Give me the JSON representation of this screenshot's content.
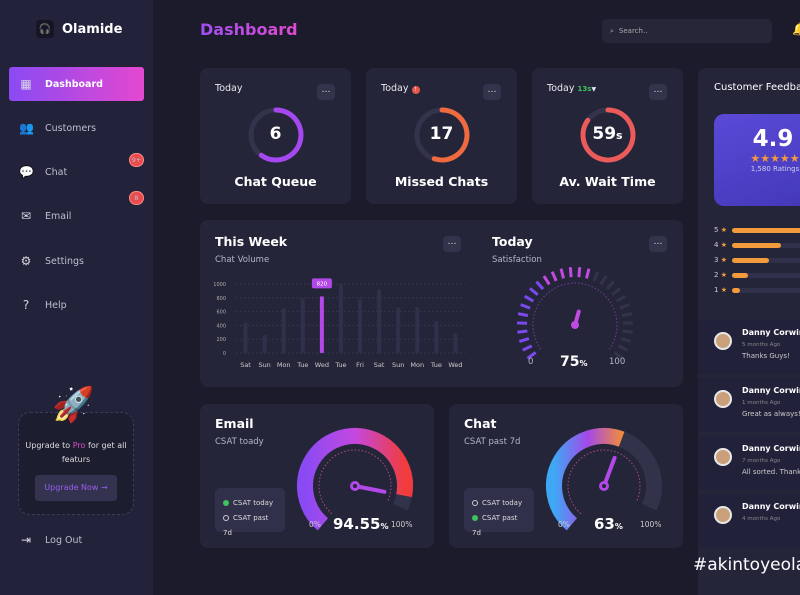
{
  "brand": {
    "name": "Olamide"
  },
  "sidebar": {
    "items": [
      {
        "label": "Dashboard",
        "icon": "dashboard-icon",
        "active": true
      },
      {
        "label": "Customers",
        "icon": "users-icon"
      },
      {
        "label": "Chat",
        "icon": "chat-icon",
        "badge": "9+"
      },
      {
        "label": "Email",
        "icon": "mail-icon",
        "badge": "8"
      },
      {
        "label": "Settings",
        "icon": "gear-icon"
      },
      {
        "label": "Help",
        "icon": "question-icon"
      }
    ],
    "upgrade": {
      "text_before": "Upgrade to ",
      "pro": "Pro",
      "text_after": " for get all featurs",
      "button": "Upgrade Now"
    },
    "logout": "Log Out"
  },
  "header": {
    "title": "Dashboard",
    "search_placeholder": "Search.."
  },
  "stats": [
    {
      "period": "Today",
      "value": "6",
      "unit": "",
      "label": "Chat Queue",
      "ring_fraction": 0.6,
      "color": "#a548f0"
    },
    {
      "period": "Today",
      "value": "17",
      "unit": "",
      "label": "Missed Chats",
      "ring_fraction": 0.55,
      "color": "#f06a3f",
      "alert": "!"
    },
    {
      "period": "Today",
      "value": "59",
      "unit": "s",
      "label": "Av. Wait Time",
      "ring_fraction": 0.85,
      "color": "#ec5a5a",
      "delta": "13s"
    }
  ],
  "week": {
    "title": "This Week",
    "subtitle": "Chat Volume",
    "tooltip": "820"
  },
  "chart_data": {
    "type": "bar",
    "categories": [
      "Sat",
      "Sun",
      "Mon",
      "Tue",
      "Wed",
      "Tue",
      "Fri",
      "Sat",
      "Sun",
      "Mon",
      "Tue",
      "Wed"
    ],
    "values": [
      440,
      260,
      650,
      790,
      820,
      1000,
      780,
      920,
      660,
      660,
      460,
      280
    ],
    "highlight_index": 4,
    "yticks": [
      0,
      200,
      400,
      600,
      800,
      1000
    ],
    "ylim": [
      0,
      1000
    ]
  },
  "satisfaction": {
    "title": "Today",
    "subtitle": "Satisfaction",
    "value": "75",
    "unit": "%",
    "min": "0",
    "max": "100",
    "fraction": 0.75
  },
  "email": {
    "title": "Email",
    "subtitle": "CSAT toady",
    "value": "94.55",
    "unit": "%",
    "min": "0%",
    "max": "100%",
    "fraction": 0.9455,
    "legend": [
      {
        "label": "CSAT today",
        "on": true
      },
      {
        "label": "CSAT past 7d",
        "on": false
      }
    ]
  },
  "chat": {
    "title": "Chat",
    "subtitle": "CSAT past 7d",
    "value": "63",
    "unit": "%",
    "min": "0%",
    "max": "100%",
    "fraction": 0.63,
    "legend": [
      {
        "label": "CSAT today",
        "on": false
      },
      {
        "label": "CSAT past 7d",
        "on": true
      }
    ]
  },
  "feedback": {
    "title": "Customer Feedback",
    "score": "4.9",
    "ratings": "1,580 Ratings",
    "bars": [
      {
        "star": "5",
        "fraction": 1.0
      },
      {
        "star": "4",
        "fraction": 0.6
      },
      {
        "star": "3",
        "fraction": 0.45
      },
      {
        "star": "2",
        "fraction": 0.2
      },
      {
        "star": "1",
        "fraction": 0.1
      }
    ],
    "reviews": [
      {
        "name": "Danny Corwin",
        "time": "5 months Ago",
        "text": "Thanks Guys!"
      },
      {
        "name": "Danny Corwin",
        "time": "1 months Ago",
        "text": "Great as always!"
      },
      {
        "name": "Danny Corwin",
        "time": "7 months Ago",
        "text": "All sorted. Thanks"
      },
      {
        "name": "Danny Corwin",
        "time": "4 months Ago",
        "text": ""
      }
    ]
  },
  "hashtag": "#akintoyeola"
}
